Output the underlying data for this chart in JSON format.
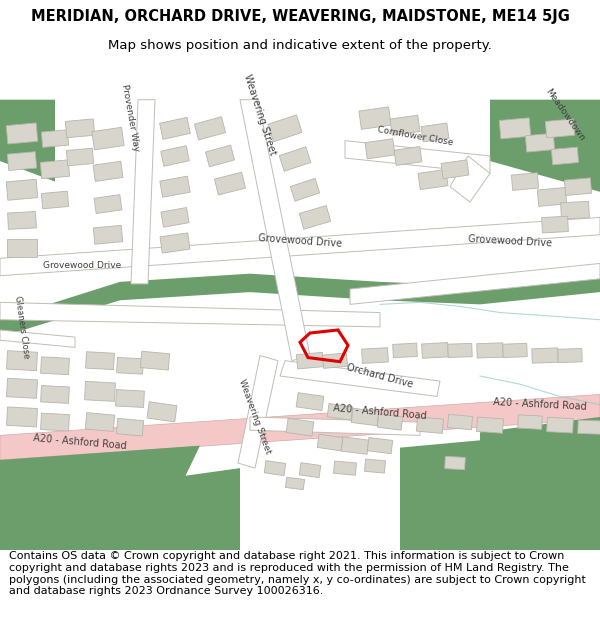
{
  "title_line1": "MERIDIAN, ORCHARD DRIVE, WEAVERING, MAIDSTONE, ME14 5JG",
  "title_line2": "Map shows position and indicative extent of the property.",
  "footer_text": "Contains OS data © Crown copyright and database right 2021. This information is subject to Crown copyright and database rights 2023 and is reproduced with the permission of HM Land Registry. The polygons (including the associated geometry, namely x, y co-ordinates) are subject to Crown copyright and database rights 2023 Ordnance Survey 100026316.",
  "bg_color": "#ffffff",
  "map_bg": "#ffffff",
  "title_fontsize": 10.5,
  "subtitle_fontsize": 9.5,
  "footer_fontsize": 8.0,
  "green_color": "#6b9e6b",
  "a20_color": "#f5c8c8",
  "building_color": "#d8d5cd",
  "building_edge": "#b8b5ad",
  "road_edge": "#c0bdb5",
  "red_color": "#e00000",
  "teal_color": "#90c8c8",
  "dark_label": "#404040",
  "mid_label": "#606060"
}
